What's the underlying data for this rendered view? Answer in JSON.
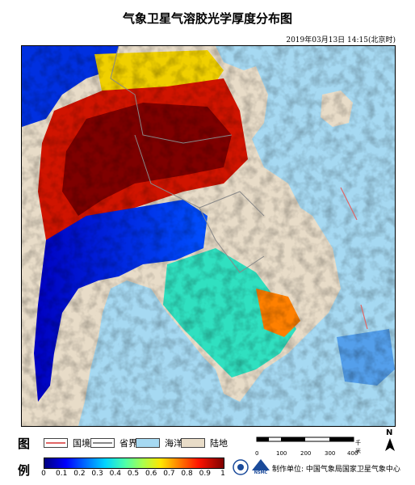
{
  "title": "气象卫星气溶胶光学厚度分布图",
  "timestamp": "2019年03月13日 14:15(北京时)",
  "legend": {
    "label_top": "图",
    "label_bottom": "例",
    "items": [
      {
        "label": "国境线",
        "color": "#e06666"
      },
      {
        "label": "省界",
        "color": "#888888"
      },
      {
        "label": "海洋",
        "color": "#a6d9f2"
      },
      {
        "label": "陆地",
        "color": "#e8dcc8"
      }
    ]
  },
  "scale_bar": {
    "ticks": [
      "0",
      "100",
      "200",
      "300",
      "400"
    ],
    "unit": "千米"
  },
  "north_label": "N",
  "colorbar": {
    "ticks": [
      "0",
      "0.1",
      "0.2",
      "0.3",
      "0.4",
      "0.5",
      "0.6",
      "0.7",
      "0.8",
      "0.9",
      "1"
    ]
  },
  "logos": {
    "nsmc_text": "NSMC"
  },
  "producer": "制作单位: 中国气象局国家卫星气象中心",
  "colors": {
    "ocean": "#a6d9f2",
    "land": "#e8dcc8",
    "border": "#e06666"
  }
}
